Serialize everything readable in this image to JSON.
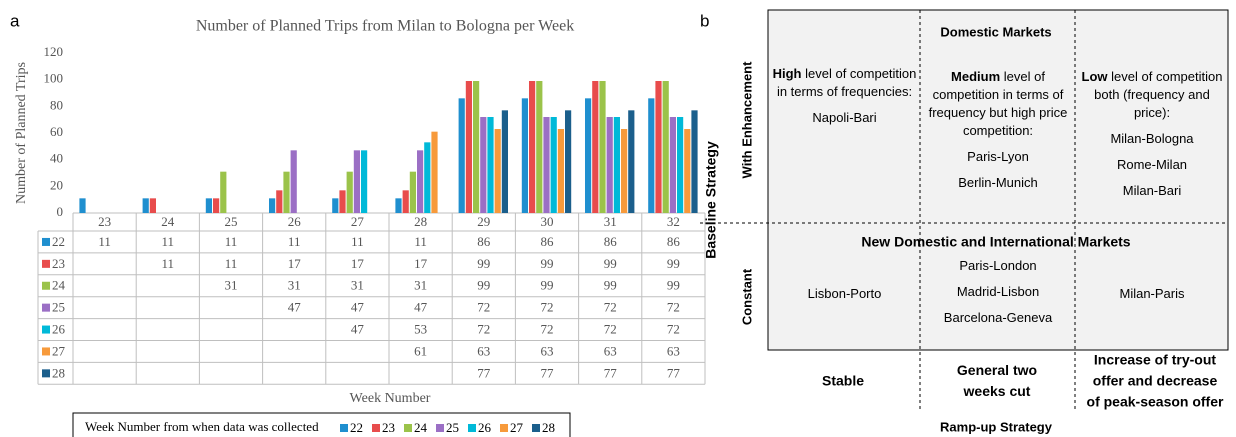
{
  "panel_labels": [
    "a",
    "b"
  ],
  "chart_data": {
    "type": "bar",
    "title": "Number of Planned Trips from Milan to Bologna per Week",
    "y_label": "Number of Planned Trips",
    "x_label": "Week Number",
    "legend_title": "Week Number from when data was collected",
    "categories": [
      "23",
      "24",
      "25",
      "26",
      "27",
      "28",
      "29",
      "30",
      "31",
      "32"
    ],
    "series": [
      {
        "name": "22",
        "color": "#1f8fcf",
        "values": [
          11,
          11,
          11,
          11,
          11,
          11,
          86,
          86,
          86,
          86
        ]
      },
      {
        "name": "23",
        "color": "#e84c4c",
        "values": [
          null,
          11,
          11,
          17,
          17,
          17,
          99,
          99,
          99,
          99
        ]
      },
      {
        "name": "24",
        "color": "#9bc34a",
        "values": [
          null,
          null,
          31,
          31,
          31,
          31,
          99,
          99,
          99,
          99
        ]
      },
      {
        "name": "25",
        "color": "#9b6fc5",
        "values": [
          null,
          null,
          null,
          47,
          47,
          47,
          72,
          72,
          72,
          72
        ]
      },
      {
        "name": "26",
        "color": "#00b9d8",
        "values": [
          null,
          null,
          null,
          null,
          47,
          53,
          72,
          72,
          72,
          72
        ]
      },
      {
        "name": "27",
        "color": "#f79a3b",
        "values": [
          null,
          null,
          null,
          null,
          null,
          61,
          63,
          63,
          63,
          63
        ]
      },
      {
        "name": "28",
        "color": "#1b5f8c",
        "values": [
          null,
          null,
          null,
          null,
          null,
          null,
          77,
          77,
          77,
          77
        ]
      }
    ],
    "ylim": [
      0,
      120
    ],
    "yticks": [
      0,
      20,
      40,
      60,
      80,
      100,
      120
    ],
    "grid": false
  },
  "diagram": {
    "y_axis_label": "Baseline Strategy",
    "x_axis_label": "Ramp-up Strategy",
    "row_labels": [
      "With Enhancement",
      "Constant"
    ],
    "column_labels": [
      [
        "Stable"
      ],
      [
        "General two",
        "weeks cut"
      ],
      [
        "Increase of try-out",
        "offer and decrease",
        "of peak-season offer"
      ]
    ],
    "section_headers": [
      "Domestic Markets",
      "New Domestic and International Markets"
    ],
    "rows": [
      [
        {
          "level": "High",
          "description": "level of competition in terms of frequencies:",
          "markets": [
            "Napoli-Bari"
          ]
        },
        {
          "level": "Medium",
          "description": "level of competition in terms of frequency but high price competition:",
          "markets": [
            "Paris-Lyon",
            "Berlin-Munich"
          ]
        },
        {
          "level": "Low",
          "description": "level of competition both (frequency and price):",
          "markets": [
            "Milan-Bologna",
            "Rome-Milan",
            "Milan-Bari"
          ]
        }
      ],
      [
        {
          "markets": [
            "Lisbon-Porto"
          ]
        },
        {
          "markets": [
            "Paris-London",
            "Madrid-Lisbon",
            "Barcelona-Geneva"
          ]
        },
        {
          "markets": [
            "Milan-Paris"
          ]
        }
      ]
    ]
  }
}
